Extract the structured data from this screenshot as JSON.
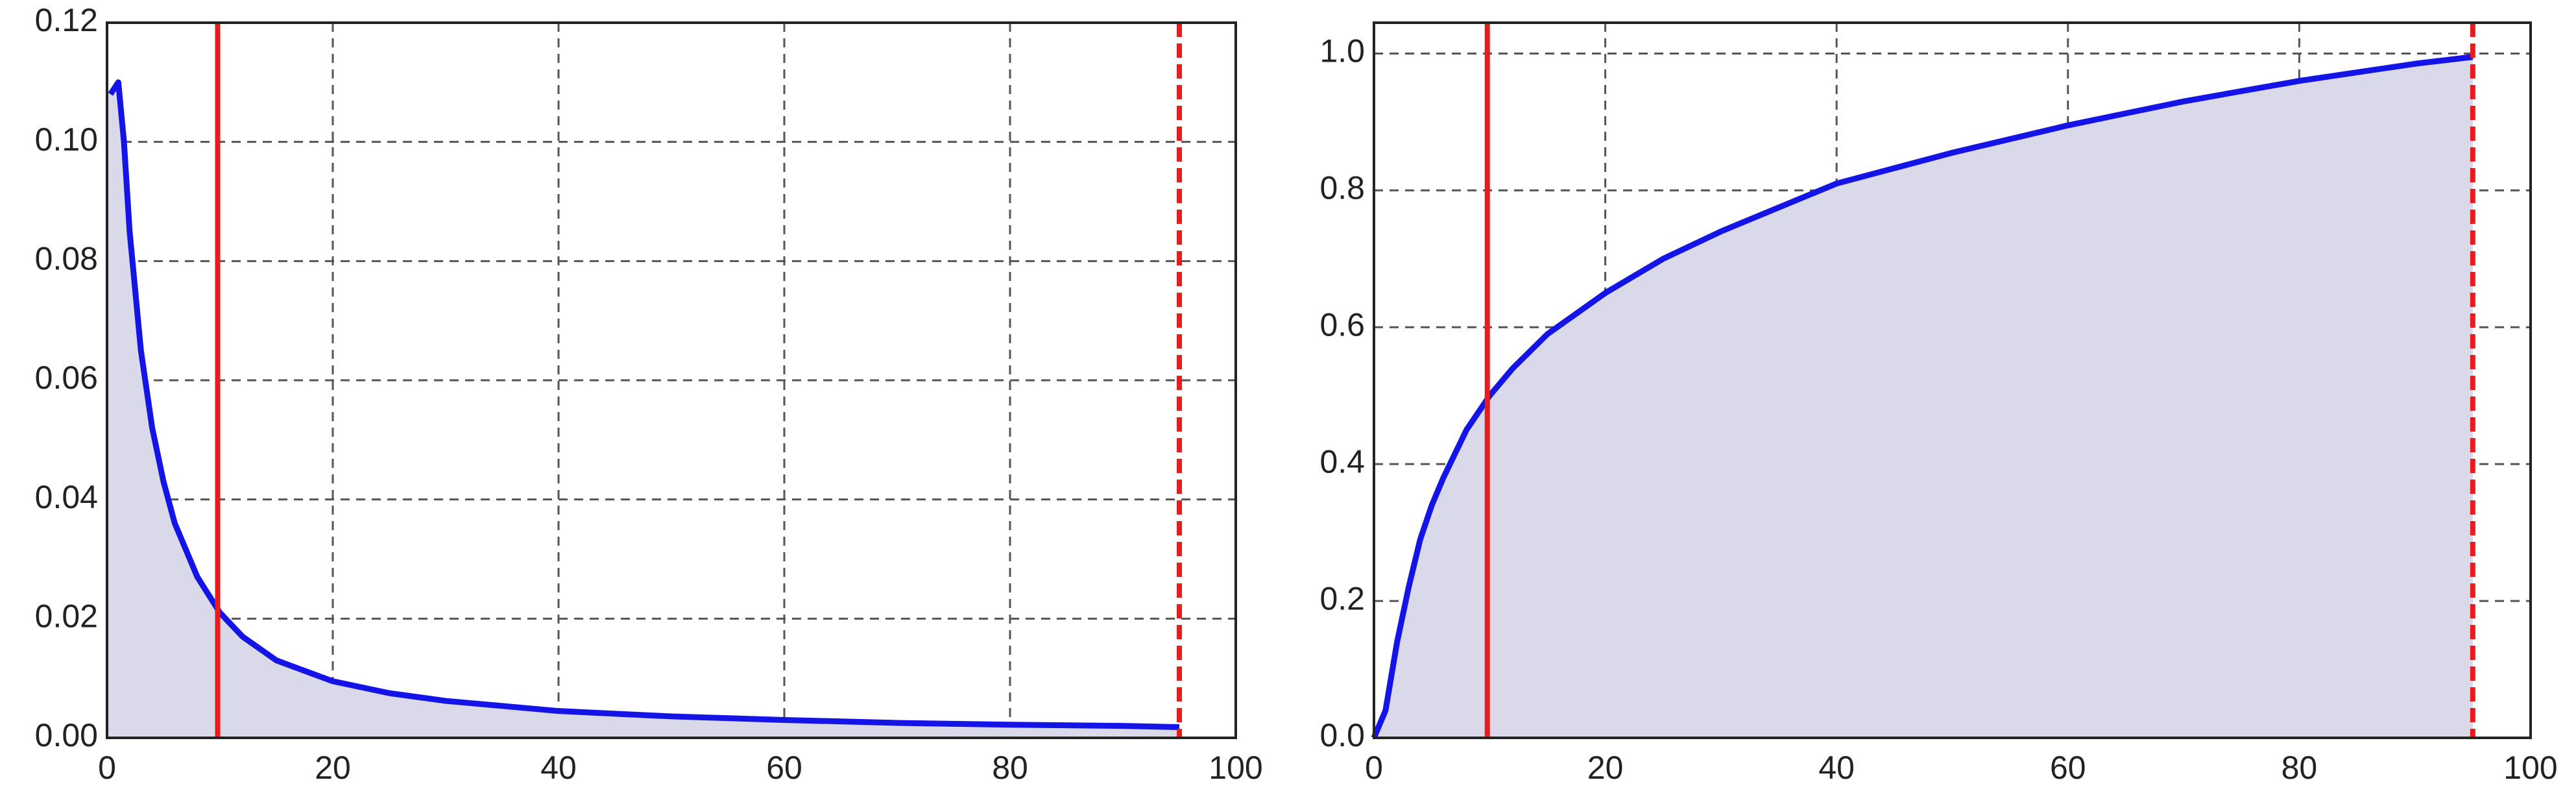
{
  "chart_data": [
    {
      "type": "area",
      "grid": true,
      "x": [
        0.3,
        1,
        1.5,
        2,
        3,
        4,
        5,
        6,
        8,
        10,
        12,
        15,
        20,
        25,
        30,
        40,
        50,
        60,
        70,
        80,
        90,
        95
      ],
      "values": [
        0.108,
        0.11,
        0.1,
        0.085,
        0.065,
        0.052,
        0.043,
        0.036,
        0.027,
        0.021,
        0.017,
        0.013,
        0.0095,
        0.0075,
        0.0062,
        0.0045,
        0.0036,
        0.003,
        0.0025,
        0.0022,
        0.002,
        0.0018
      ],
      "color": "#1414e6",
      "fill_color": "#d9d9ea",
      "reference_lines": [
        {
          "x": 9.8,
          "color": "#e81c1c",
          "dashed": false
        },
        {
          "x": 95,
          "color": "#e81c1c",
          "dashed": true
        }
      ],
      "xlim": [
        0,
        100
      ],
      "xticks": [
        0,
        20,
        40,
        60,
        80,
        100
      ],
      "ylim": [
        0,
        0.12
      ],
      "yticks": [
        {
          "value": 0,
          "label": "0.00"
        },
        0.02,
        0.04,
        0.06,
        0.08,
        {
          "value": 0.1,
          "label": "0.10"
        },
        0.12
      ]
    },
    {
      "type": "area",
      "grid": true,
      "x": [
        0,
        1,
        2,
        3,
        4,
        5,
        6,
        8,
        10,
        12,
        15,
        20,
        25,
        30,
        40,
        50,
        60,
        70,
        80,
        90,
        95
      ],
      "values": [
        0,
        0.04,
        0.14,
        0.22,
        0.29,
        0.34,
        0.38,
        0.45,
        0.5,
        0.54,
        0.59,
        0.65,
        0.7,
        0.74,
        0.81,
        0.855,
        0.895,
        0.93,
        0.96,
        0.985,
        0.995
      ],
      "color": "#1414e6",
      "fill_color": "#d9d9ea",
      "reference_lines": [
        {
          "x": 9.8,
          "color": "#e81c1c",
          "dashed": false
        },
        {
          "x": 95,
          "color": "#e81c1c",
          "dashed": true
        }
      ],
      "xlim": [
        0,
        100
      ],
      "xticks": [
        0,
        20,
        40,
        60,
        80,
        100
      ],
      "ylim": [
        0,
        1.045
      ],
      "yticks": [
        {
          "value": 0,
          "label": "0.0"
        },
        0.2,
        0.4,
        0.6,
        0.8,
        {
          "value": 1,
          "label": "1.0"
        }
      ]
    }
  ]
}
